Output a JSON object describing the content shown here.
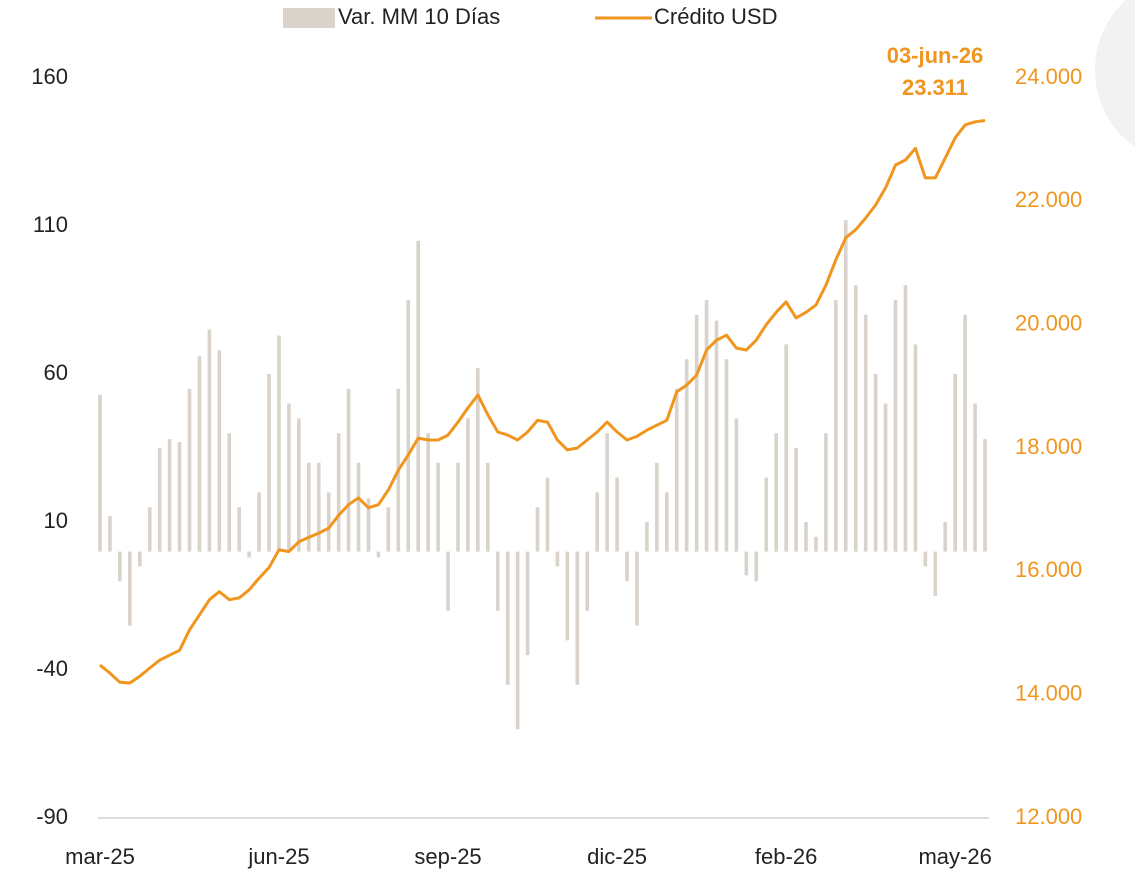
{
  "chart_data": {
    "type": "bar_line",
    "legend": [
      "Var. MM 10 Días",
      "Crédito USD"
    ],
    "annotations": [
      "03-jun-26",
      "23.311"
    ],
    "categories": [
      "mar-25",
      null,
      null,
      null,
      null,
      null,
      null,
      null,
      null,
      null,
      null,
      null,
      null,
      null,
      null,
      null,
      null,
      null,
      "jun-25",
      null,
      null,
      null,
      null,
      null,
      null,
      null,
      null,
      null,
      null,
      null,
      null,
      null,
      null,
      null,
      null,
      "sep-25",
      null,
      null,
      null,
      null,
      null,
      null,
      null,
      null,
      null,
      null,
      null,
      null,
      null,
      null,
      null,
      null,
      "dic-25",
      null,
      null,
      null,
      null,
      null,
      null,
      null,
      null,
      null,
      null,
      null,
      null,
      null,
      null,
      null,
      null,
      "feb-26",
      null,
      null,
      null,
      null,
      null,
      null,
      null,
      null,
      null,
      null,
      null,
      null,
      null,
      null,
      null,
      null,
      "may-26",
      null,
      null,
      null
    ],
    "series": [
      {
        "name": "Var. MM 10 Días",
        "color": "#d9d3cb",
        "kind": "bar",
        "axis": "y",
        "values": [
          53,
          12,
          -10,
          -25,
          -5,
          15,
          35,
          38,
          37,
          55,
          66,
          75,
          68,
          40,
          15,
          -2,
          20,
          60,
          73,
          50,
          45,
          30,
          30,
          20,
          40,
          55,
          30,
          18,
          -2,
          15,
          55,
          85,
          105,
          40,
          30,
          -20,
          30,
          45,
          62,
          30,
          -20,
          -45,
          -60,
          -35,
          15,
          25,
          -5,
          -30,
          -45,
          -20,
          20,
          40,
          25,
          -10,
          -25,
          10,
          30,
          20,
          55,
          65,
          80,
          85,
          78,
          65,
          45,
          -8,
          -10,
          25,
          40,
          70,
          35,
          10,
          5,
          40,
          85,
          112,
          90,
          80,
          60,
          50,
          85,
          90,
          70,
          -5,
          -15,
          10,
          60,
          80,
          50,
          38
        ]
      },
      {
        "name": "Crédito USD",
        "color": "#f0961e",
        "kind": "line",
        "axis": "y2",
        "values": [
          14480,
          14350,
          14200,
          14190,
          14300,
          14430,
          14560,
          14640,
          14720,
          15050,
          15290,
          15540,
          15670,
          15540,
          15570,
          15700,
          15890,
          16060,
          16350,
          16320,
          16480,
          16550,
          16620,
          16700,
          16910,
          17080,
          17190,
          17030,
          17080,
          17320,
          17640,
          17890,
          18160,
          18130,
          18130,
          18210,
          18420,
          18650,
          18860,
          18540,
          18260,
          18210,
          18130,
          18260,
          18450,
          18420,
          18130,
          17970,
          18000,
          18130,
          18260,
          18420,
          18260,
          18130,
          18190,
          18290,
          18370,
          18450,
          18910,
          19020,
          19180,
          19590,
          19750,
          19830,
          19620,
          19590,
          19750,
          20000,
          20200,
          20370,
          20110,
          20200,
          20320,
          20640,
          21050,
          21410,
          21540,
          21730,
          21940,
          22220,
          22590,
          22670,
          22860,
          22380,
          22380,
          22700,
          23030,
          23240,
          23290,
          23311
        ]
      }
    ],
    "ylim": [
      -90,
      160
    ],
    "yticks": [
      -90,
      -40,
      10,
      60,
      110,
      160
    ],
    "y2lim": [
      12000,
      24000
    ],
    "y2ticks": [
      {
        "value": 12000,
        "label": "12.000"
      },
      {
        "value": 14000,
        "label": "14.000"
      },
      {
        "value": 16000,
        "label": "16.000"
      },
      {
        "value": 18000,
        "label": "18.000"
      },
      {
        "value": 20000,
        "label": "20.000"
      },
      {
        "value": 22000,
        "label": "22.000"
      },
      {
        "value": 24000,
        "label": "24.000"
      }
    ]
  }
}
